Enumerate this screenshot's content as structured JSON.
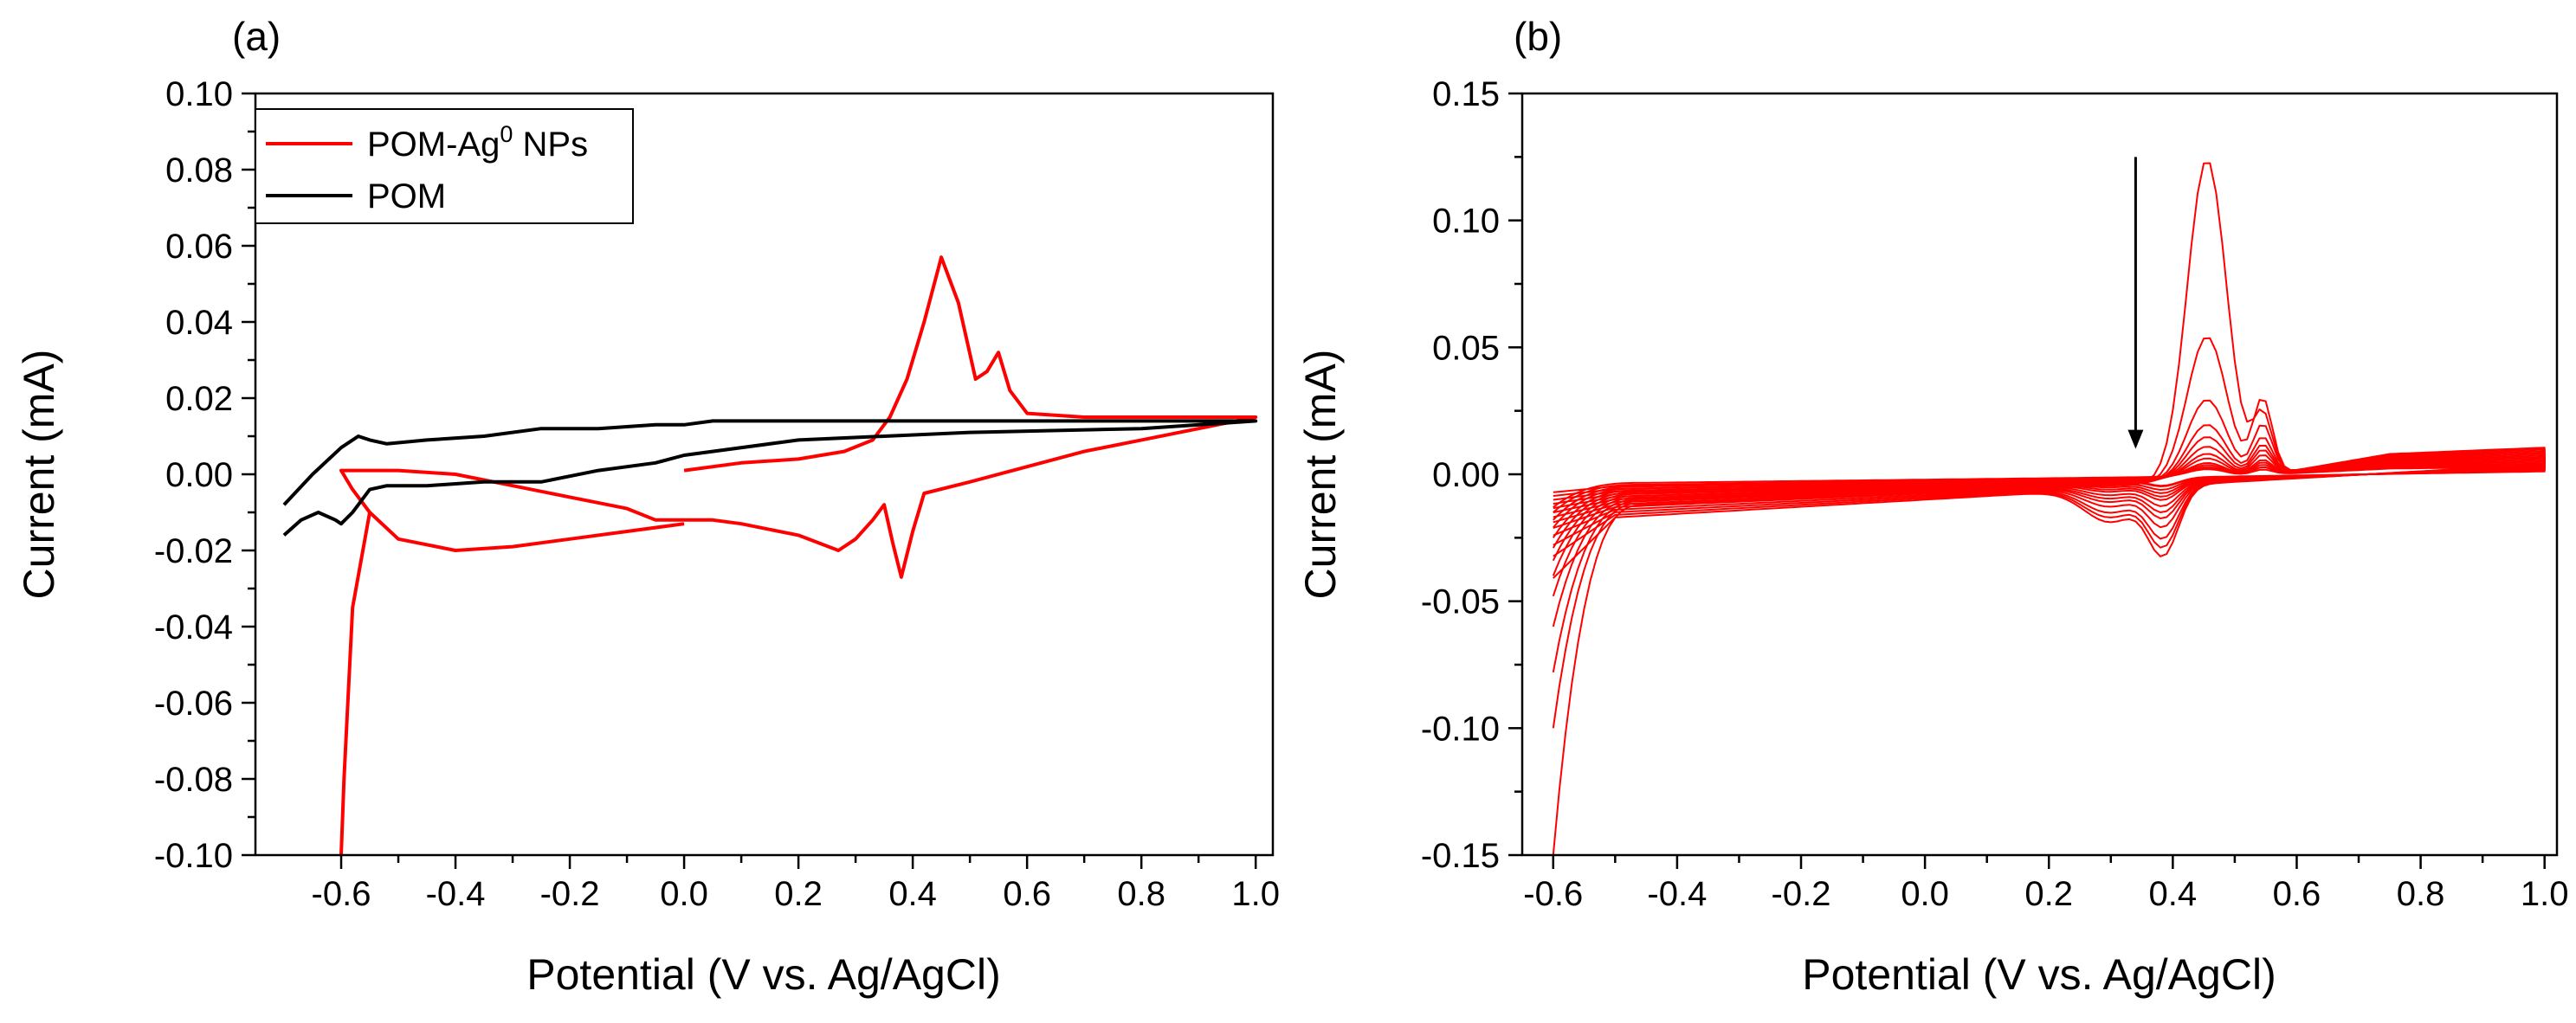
{
  "chart_data": [
    {
      "type": "line",
      "panel_label": "(a)",
      "xlabel": "Potential (V vs. Ag/AgCl)",
      "ylabel": "Current (mA)",
      "xlim": [
        -0.75,
        1.03
      ],
      "ylim": [
        -0.1,
        0.1
      ],
      "xticks": [
        -0.6,
        -0.4,
        -0.2,
        0.0,
        0.2,
        0.4,
        0.6,
        0.8,
        1.0
      ],
      "xtick_labels": [
        "-0.6",
        "-0.4",
        "-0.2",
        "0.0",
        "0.2",
        "0.4",
        "0.6",
        "0.8",
        "1.0"
      ],
      "yticks": [
        -0.1,
        -0.08,
        -0.06,
        -0.04,
        -0.02,
        0.0,
        0.02,
        0.04,
        0.06,
        0.08,
        0.1
      ],
      "ytick_labels": [
        "-0.10",
        "-0.08",
        "-0.06",
        "-0.04",
        "-0.02",
        "0.00",
        "0.02",
        "0.04",
        "0.06",
        "0.08",
        "0.10"
      ],
      "legend": {
        "placement": "top-left",
        "entries": [
          {
            "name_main": "POM-Ag",
            "name_sup": "0",
            "name_tail": " NPs",
            "color": "#ff0000"
          },
          {
            "name_main": "POM",
            "name_sup": "",
            "name_tail": "",
            "color": "#000000"
          }
        ]
      },
      "series": [
        {
          "name": "POM-Ag0 NPs",
          "color": "#ff0000",
          "x": [
            0.0,
            0.1,
            0.2,
            0.28,
            0.33,
            0.36,
            0.39,
            0.42,
            0.45,
            0.48,
            0.51,
            0.53,
            0.55,
            0.57,
            0.6,
            0.7,
            0.8,
            0.9,
            1.0,
            0.9,
            0.8,
            0.7,
            0.6,
            0.5,
            0.42,
            0.4,
            0.38,
            0.365,
            0.35,
            0.33,
            0.3,
            0.27,
            0.2,
            0.1,
            0.05,
            0.0,
            -0.05,
            -0.1,
            -0.2,
            -0.3,
            -0.4,
            -0.5,
            -0.55,
            -0.58,
            -0.6,
            -0.58,
            -0.55,
            -0.5,
            -0.4,
            -0.3,
            -0.2,
            -0.1,
            0.0
          ],
          "y": [
            0.001,
            0.003,
            0.004,
            0.006,
            0.009,
            0.015,
            0.025,
            0.04,
            0.057,
            0.045,
            0.025,
            0.027,
            0.032,
            0.022,
            0.016,
            0.015,
            0.015,
            0.015,
            0.015,
            0.012,
            0.009,
            0.006,
            0.002,
            -0.002,
            -0.005,
            -0.015,
            -0.027,
            -0.018,
            -0.008,
            -0.012,
            -0.017,
            -0.02,
            -0.016,
            -0.013,
            -0.012,
            -0.012,
            -0.012,
            -0.009,
            -0.006,
            -0.003,
            0.0,
            0.001,
            0.001,
            0.001,
            0.001,
            -0.004,
            -0.01,
            -0.017,
            -0.02,
            -0.019,
            -0.017,
            -0.015,
            -0.013
          ]
        },
        {
          "name": "POM",
          "color": "#000000",
          "x": [
            -0.7,
            -0.67,
            -0.64,
            -0.61,
            -0.6,
            -0.58,
            -0.55,
            -0.52,
            -0.45,
            -0.35,
            -0.25,
            -0.15,
            -0.05,
            0.0,
            0.2,
            0.5,
            0.8,
            1.0,
            0.8,
            0.5,
            0.2,
            0.05,
            0.0,
            -0.05,
            -0.15,
            -0.25,
            -0.35,
            -0.45,
            -0.52,
            -0.55,
            -0.57,
            -0.6,
            -0.65,
            -0.7
          ],
          "y": [
            -0.016,
            -0.012,
            -0.01,
            -0.012,
            -0.013,
            -0.01,
            -0.004,
            -0.003,
            -0.003,
            -0.002,
            -0.002,
            0.001,
            0.003,
            0.005,
            0.009,
            0.011,
            0.012,
            0.014,
            0.014,
            0.014,
            0.014,
            0.014,
            0.013,
            0.013,
            0.012,
            0.012,
            0.01,
            0.009,
            0.008,
            0.009,
            0.01,
            0.007,
            0.0,
            -0.008
          ]
        }
      ]
    },
    {
      "type": "line",
      "panel_label": "(b)",
      "xlabel": "Potential (V vs. Ag/AgCl)",
      "ylabel": "Current (mA)",
      "xlim": [
        -0.65,
        1.02
      ],
      "ylim": [
        -0.15,
        0.15
      ],
      "xticks": [
        -0.6,
        -0.4,
        -0.2,
        0.0,
        0.2,
        0.4,
        0.6,
        0.8,
        1.0
      ],
      "xtick_labels": [
        "-0.6",
        "-0.4",
        "-0.2",
        "0.0",
        "0.2",
        "0.4",
        "0.6",
        "0.8",
        "1.0"
      ],
      "yticks": [
        -0.15,
        -0.1,
        -0.05,
        0.0,
        0.05,
        0.1,
        0.15
      ],
      "ytick_labels": [
        "-0.15",
        "-0.10",
        "-0.05",
        "0.00",
        "0.05",
        "0.10",
        "0.15"
      ],
      "annotation": {
        "type": "arrow-down",
        "x": 0.34,
        "y_from": 0.125,
        "y_to": 0.01
      },
      "series_color": "#ff0000",
      "cycles": [
        {
          "ox_peak": 0.127,
          "second_peak": 0.024,
          "red_peak": -0.026,
          "start_current": -0.15
        },
        {
          "ox_peak": 0.057,
          "second_peak": 0.03,
          "red_peak": -0.023,
          "start_current": -0.1
        },
        {
          "ox_peak": 0.032,
          "second_peak": 0.02,
          "red_peak": -0.02,
          "start_current": -0.078
        },
        {
          "ox_peak": 0.022,
          "second_peak": 0.015,
          "red_peak": -0.016,
          "start_current": -0.06
        },
        {
          "ox_peak": 0.017,
          "second_peak": 0.012,
          "red_peak": -0.013,
          "start_current": -0.048
        },
        {
          "ox_peak": 0.013,
          "second_peak": 0.01,
          "red_peak": -0.011,
          "start_current": -0.04
        },
        {
          "ox_peak": 0.01,
          "second_peak": 0.008,
          "red_peak": -0.009,
          "start_current": -0.034
        },
        {
          "ox_peak": 0.008,
          "second_peak": 0.006,
          "red_peak": -0.007,
          "start_current": -0.029
        },
        {
          "ox_peak": 0.006,
          "second_peak": 0.005,
          "red_peak": -0.006,
          "start_current": -0.025
        },
        {
          "ox_peak": 0.005,
          "second_peak": 0.004,
          "red_peak": -0.005,
          "start_current": -0.021
        },
        {
          "ox_peak": 0.004,
          "second_peak": 0.003,
          "red_peak": -0.004,
          "start_current": -0.018
        },
        {
          "ox_peak": 0.003,
          "second_peak": 0.003,
          "red_peak": -0.003,
          "start_current": -0.015
        },
        {
          "ox_peak": 0.003,
          "second_peak": 0.002,
          "red_peak": -0.003,
          "start_current": -0.013
        }
      ]
    }
  ]
}
